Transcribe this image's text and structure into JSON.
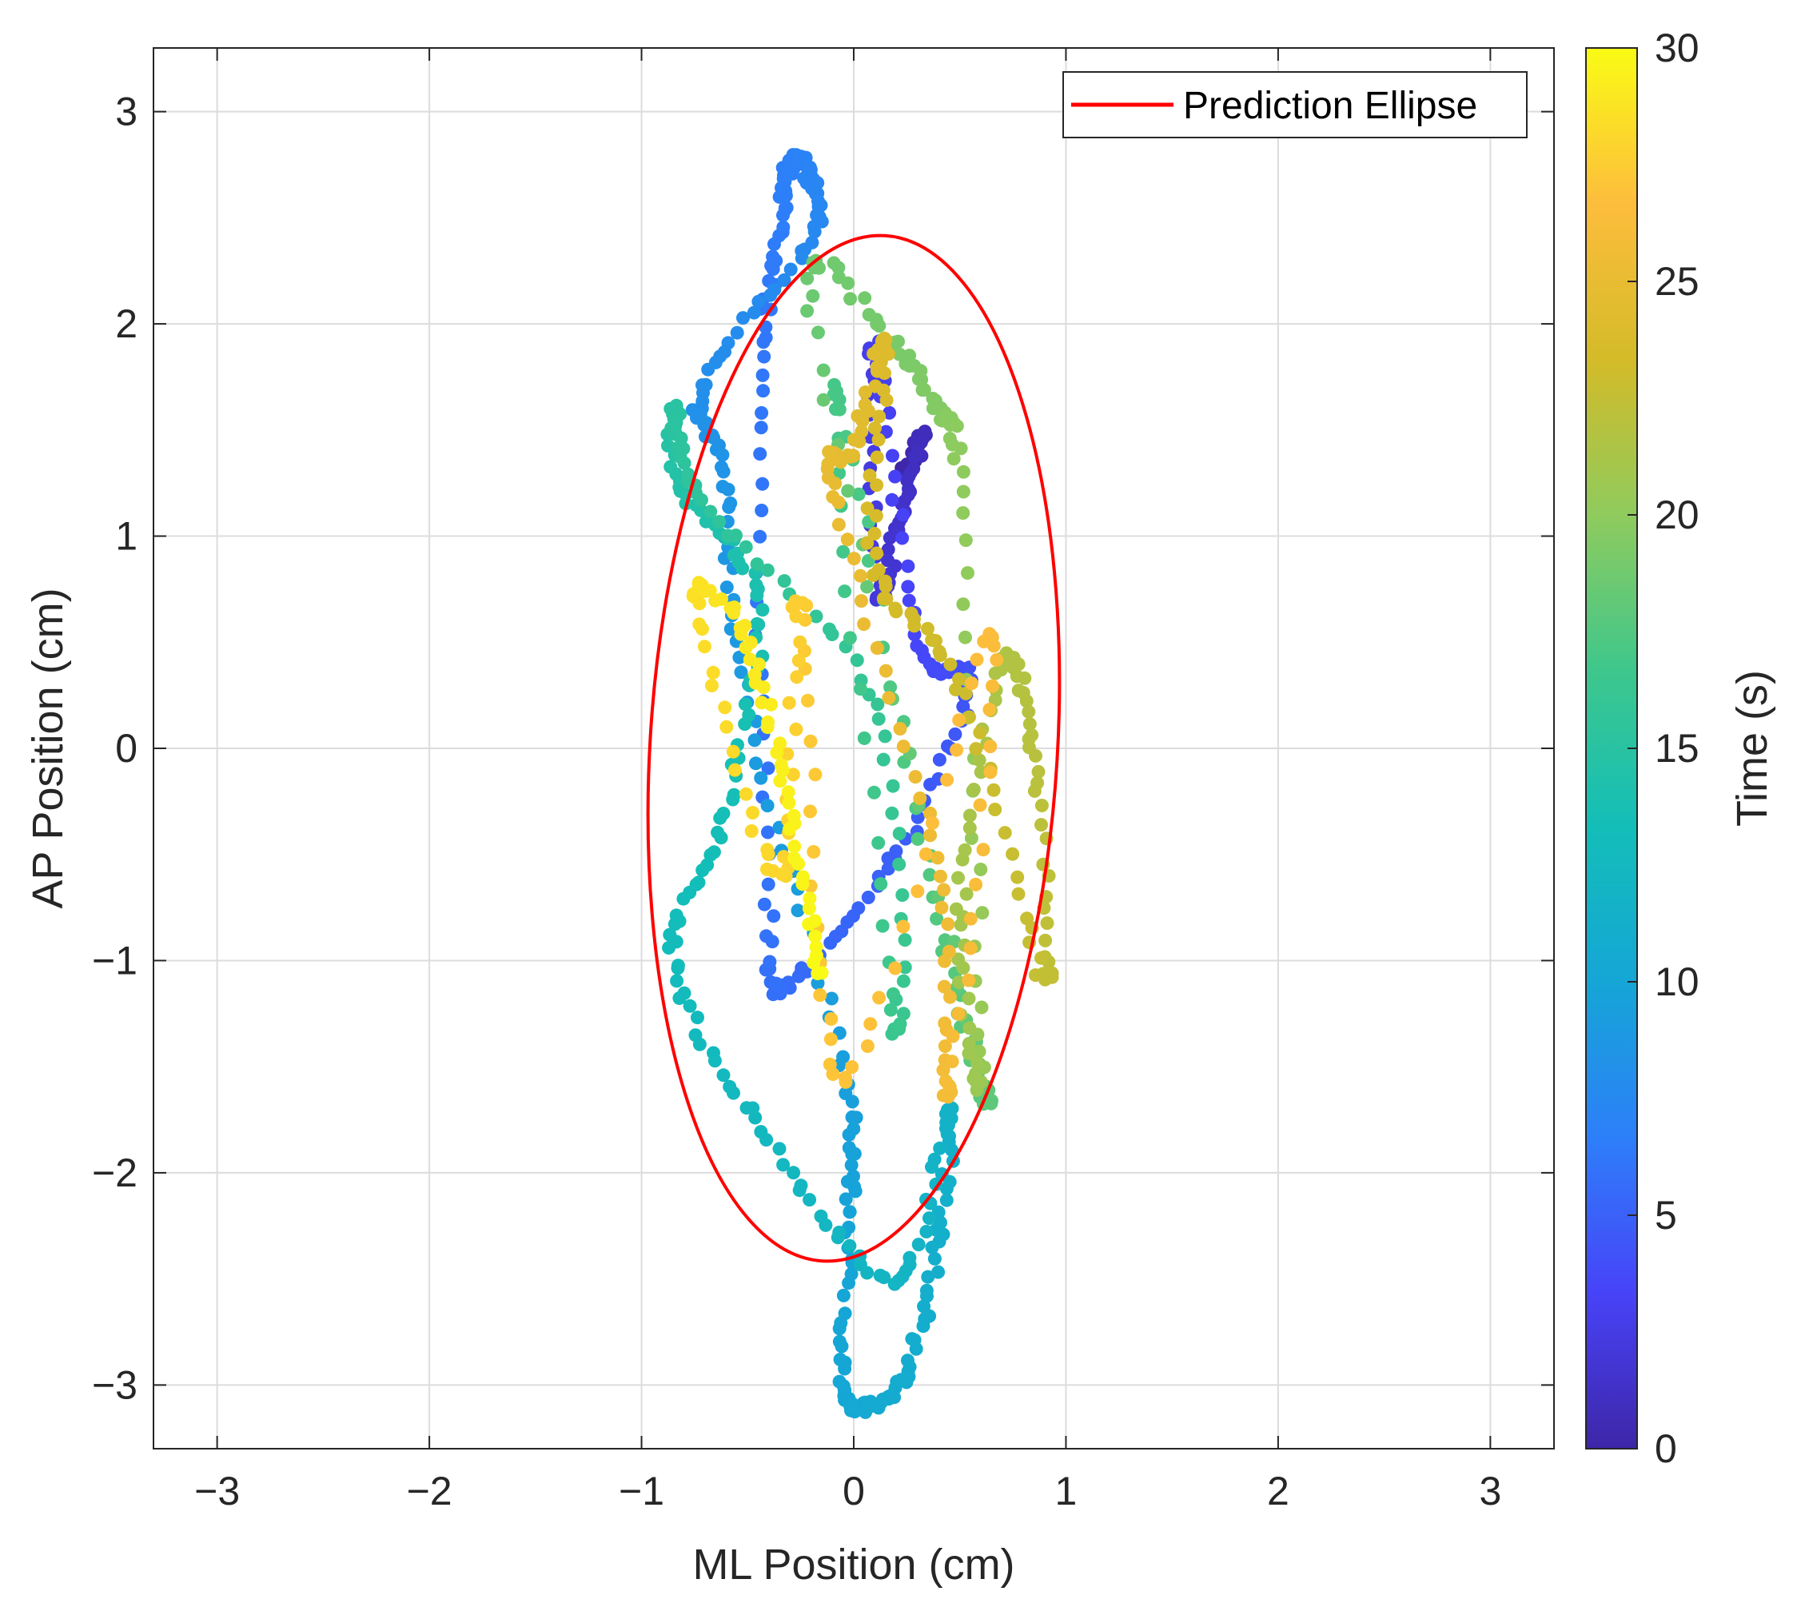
{
  "chart_data": {
    "type": "scatter",
    "title": "",
    "xlabel": "ML Position (cm)",
    "ylabel": "AP Position (cm)",
    "xlim": [
      -3.3,
      3.3
    ],
    "ylim": [
      -3.3,
      3.3
    ],
    "xticks": [
      -3,
      -2,
      -1,
      0,
      1,
      2,
      3
    ],
    "yticks": [
      -3,
      -2,
      -1,
      0,
      1,
      2,
      3
    ],
    "xtick_labels": [
      "−3",
      "−2",
      "−1",
      "0",
      "1",
      "2",
      "3"
    ],
    "ytick_labels": [
      "−3",
      "−2",
      "−1",
      "0",
      "1",
      "2",
      "3"
    ],
    "grid": true,
    "legend": {
      "position": "top-right",
      "entries": [
        "Prediction Ellipse"
      ]
    },
    "ellipse": {
      "name": "Prediction Ellipse",
      "center": [
        0.0,
        0.0
      ],
      "semi_axis_ml": 0.96,
      "semi_axis_ap": 2.42,
      "tilt_deg": 3.5,
      "color": "#ff0000"
    },
    "colorbar": {
      "label": "Time (s)",
      "range": [
        0,
        30
      ],
      "ticks": [
        0,
        5,
        10,
        15,
        20,
        25,
        30
      ],
      "tick_labels": [
        "0",
        "5",
        "10",
        "15",
        "20",
        "25",
        "30"
      ],
      "colormap": [
        "#3e26a8",
        "#4743f8",
        "#2d7ff9",
        "#15a6d6",
        "#13beb8",
        "#3ec78c",
        "#8fcb5d",
        "#d4bb28",
        "#fdbd3c",
        "#f9fb15"
      ]
    },
    "trajectory_keypoints": [
      {
        "t": 0.0,
        "x": 0.25,
        "y": 1.3
      },
      {
        "t": 0.7,
        "x": 0.32,
        "y": 1.48
      },
      {
        "t": 1.4,
        "x": 0.22,
        "y": 1.12
      },
      {
        "t": 2.1,
        "x": 0.12,
        "y": 0.75
      },
      {
        "t": 2.8,
        "x": 0.1,
        "y": 1.9
      },
      {
        "t": 3.5,
        "x": 0.3,
        "y": 0.5
      },
      {
        "t": 4.2,
        "x": 0.55,
        "y": 0.3
      },
      {
        "t": 4.9,
        "x": 0.2,
        "y": -0.5
      },
      {
        "t": 5.6,
        "x": -0.3,
        "y": -1.1
      },
      {
        "t": 6.0,
        "x": -0.4,
        "y": -0.8
      },
      {
        "t": 6.2,
        "x": -0.45,
        "y": 1.6
      },
      {
        "t": 6.5,
        "x": -0.35,
        "y": 2.4
      },
      {
        "t": 6.8,
        "x": -0.3,
        "y": 2.75
      },
      {
        "t": 7.1,
        "x": -0.22,
        "y": 2.72
      },
      {
        "t": 7.5,
        "x": -0.2,
        "y": 2.4
      },
      {
        "t": 8.0,
        "x": -0.72,
        "y": 1.7
      },
      {
        "t": 8.5,
        "x": -0.62,
        "y": 1.3
      },
      {
        "t": 9.0,
        "x": -0.5,
        "y": 0.2
      },
      {
        "t": 9.4,
        "x": -0.05,
        "y": -1.5
      },
      {
        "t": 9.8,
        "x": -0.02,
        "y": -2.2
      },
      {
        "t": 10.1,
        "x": -0.05,
        "y": -3.0
      },
      {
        "t": 10.4,
        "x": 0.05,
        "y": -3.1
      },
      {
        "t": 10.8,
        "x": 0.25,
        "y": -2.95
      },
      {
        "t": 11.2,
        "x": 0.4,
        "y": -2.3
      },
      {
        "t": 11.6,
        "x": 0.45,
        "y": -1.7
      },
      {
        "t": 12.0,
        "x": 0.2,
        "y": -2.5
      },
      {
        "t": 12.5,
        "x": -0.4,
        "y": -1.85
      },
      {
        "t": 13.0,
        "x": -0.85,
        "y": -1.0
      },
      {
        "t": 13.5,
        "x": -0.6,
        "y": -0.3
      },
      {
        "t": 14.0,
        "x": -0.45,
        "y": 0.7
      },
      {
        "t": 14.5,
        "x": -0.8,
        "y": 1.2
      },
      {
        "t": 15.0,
        "x": -0.85,
        "y": 1.6
      },
      {
        "t": 15.5,
        "x": -0.7,
        "y": 1.15
      },
      {
        "t": 16.0,
        "x": 0.1,
        "y": 0.2
      },
      {
        "t": 16.5,
        "x": 0.2,
        "y": -1.3
      },
      {
        "t": 17.0,
        "x": -0.1,
        "y": 1.7
      },
      {
        "t": 17.5,
        "x": 0.4,
        "y": -0.8
      },
      {
        "t": 18.0,
        "x": 0.6,
        "y": -1.5
      },
      {
        "t": 18.5,
        "x": -0.2,
        "y": 2.05
      },
      {
        "t": 19.0,
        "x": 0.15,
        "y": 1.95
      },
      {
        "t": 19.5,
        "x": 0.4,
        "y": 1.6
      },
      {
        "t": 20.0,
        "x": 0.5,
        "y": 1.2
      },
      {
        "t": 20.5,
        "x": 0.6,
        "y": -1.5
      },
      {
        "t": 21.0,
        "x": 0.5,
        "y": -0.8
      },
      {
        "t": 21.5,
        "x": 0.7,
        "y": 0.4
      },
      {
        "t": 22.0,
        "x": 0.85,
        "y": -0.05
      },
      {
        "t": 22.5,
        "x": 0.9,
        "y": -1.1
      },
      {
        "t": 23.0,
        "x": 0.5,
        "y": 0.3
      },
      {
        "t": 23.5,
        "x": 0.1,
        "y": 0.85
      },
      {
        "t": 24.0,
        "x": 0.15,
        "y": 1.9
      },
      {
        "t": 24.5,
        "x": 0.0,
        "y": 1.4
      },
      {
        "t": 25.0,
        "x": -0.1,
        "y": 1.2
      },
      {
        "t": 25.5,
        "x": 0.4,
        "y": -0.6
      },
      {
        "t": 26.0,
        "x": 0.45,
        "y": -1.6
      },
      {
        "t": 26.5,
        "x": 0.65,
        "y": 0.55
      },
      {
        "t": 27.0,
        "x": -0.05,
        "y": -1.55
      },
      {
        "t": 27.5,
        "x": -0.25,
        "y": 0.7
      },
      {
        "t": 28.0,
        "x": -0.35,
        "y": -0.6
      },
      {
        "t": 28.5,
        "x": -0.75,
        "y": 0.7
      },
      {
        "t": 29.0,
        "x": -0.5,
        "y": 0.5
      },
      {
        "t": 29.5,
        "x": -0.3,
        "y": -0.3
      },
      {
        "t": 30.0,
        "x": -0.15,
        "y": -1.1
      }
    ],
    "points_per_segment": 18
  }
}
